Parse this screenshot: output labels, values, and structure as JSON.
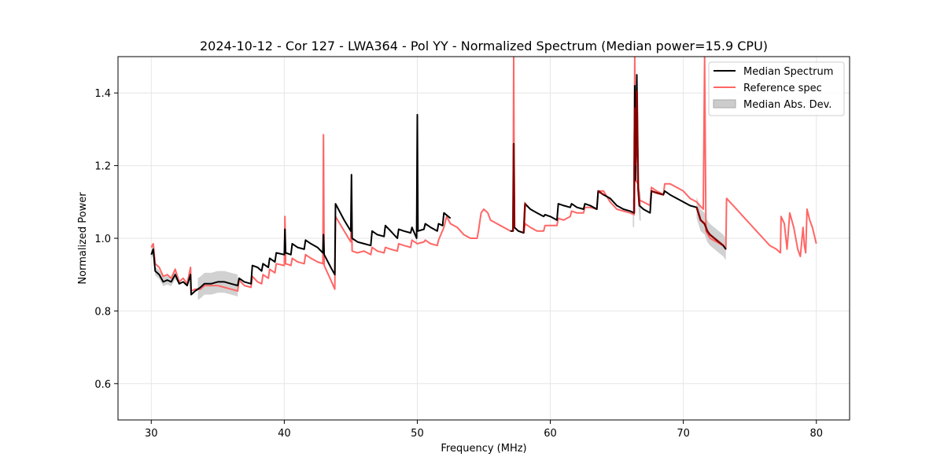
{
  "chart_data": {
    "type": "line",
    "title": "2024-10-12 - Cor 127 - LWA364 - Pol YY - Normalized Spectrum (Median power=15.9 CPU)",
    "xlabel": "Frequency (MHz)",
    "ylabel": "Normalized Power",
    "xlim": [
      27.5,
      82.5
    ],
    "ylim": [
      0.5,
      1.5
    ],
    "xticks": [
      30,
      40,
      50,
      60,
      70,
      80
    ],
    "xtick_labels": [
      "30",
      "40",
      "50",
      "60",
      "70",
      "80"
    ],
    "yticks": [
      0.6,
      0.8,
      1.0,
      1.2,
      1.4
    ],
    "ytick_labels": [
      "0.6",
      "0.8",
      "1.0",
      "1.2",
      "1.4"
    ],
    "grid": true,
    "legend_position": "top-right",
    "series": [
      {
        "name": "Reference spec",
        "color": "#ff6666",
        "points": [
          [
            30.0,
            0.975
          ],
          [
            30.15,
            0.985
          ],
          [
            30.3,
            0.93
          ],
          [
            30.6,
            0.92
          ],
          [
            30.9,
            0.895
          ],
          [
            31.2,
            0.9
          ],
          [
            31.5,
            0.89
          ],
          [
            31.8,
            0.915
          ],
          [
            32.1,
            0.88
          ],
          [
            32.4,
            0.89
          ],
          [
            32.7,
            0.875
          ],
          [
            32.95,
            0.92
          ],
          [
            33.0,
            0.855
          ],
          [
            33.3,
            0.86
          ],
          [
            33.7,
            0.86
          ],
          [
            34.0,
            0.87
          ],
          [
            34.5,
            0.87
          ],
          [
            35.0,
            0.87
          ],
          [
            35.5,
            0.865
          ],
          [
            36.0,
            0.86
          ],
          [
            36.5,
            0.855
          ],
          [
            36.6,
            0.885
          ],
          [
            37.0,
            0.87
          ],
          [
            37.5,
            0.865
          ],
          [
            37.6,
            0.895
          ],
          [
            38.0,
            0.88
          ],
          [
            38.3,
            0.875
          ],
          [
            38.4,
            0.9
          ],
          [
            38.8,
            0.89
          ],
          [
            38.9,
            0.915
          ],
          [
            39.3,
            0.905
          ],
          [
            39.4,
            0.93
          ],
          [
            40.0,
            0.925
          ],
          [
            40.05,
            1.06
          ],
          [
            40.1,
            0.93
          ],
          [
            40.5,
            0.925
          ],
          [
            40.6,
            0.945
          ],
          [
            41.0,
            0.935
          ],
          [
            41.5,
            0.93
          ],
          [
            41.6,
            0.955
          ],
          [
            42.0,
            0.945
          ],
          [
            42.5,
            0.935
          ],
          [
            42.9,
            0.93
          ],
          [
            42.95,
            1.285
          ],
          [
            43.0,
            0.925
          ],
          [
            43.5,
            0.885
          ],
          [
            43.8,
            0.86
          ],
          [
            43.85,
            1.06
          ],
          [
            44.5,
            1.02
          ],
          [
            45.0,
            0.99
          ],
          [
            45.05,
            1.09
          ],
          [
            45.1,
            0.965
          ],
          [
            45.5,
            0.96
          ],
          [
            46.0,
            0.965
          ],
          [
            46.5,
            0.955
          ],
          [
            46.6,
            0.975
          ],
          [
            47.0,
            0.965
          ],
          [
            47.5,
            0.96
          ],
          [
            47.6,
            0.975
          ],
          [
            48.0,
            0.97
          ],
          [
            48.5,
            0.965
          ],
          [
            48.6,
            0.985
          ],
          [
            49.0,
            0.98
          ],
          [
            49.5,
            0.975
          ],
          [
            49.6,
            0.995
          ],
          [
            50.0,
            0.985
          ],
          [
            50.5,
            0.99
          ],
          [
            50.6,
            0.995
          ],
          [
            51.0,
            0.985
          ],
          [
            51.5,
            0.98
          ],
          [
            51.6,
            0.995
          ],
          [
            52.0,
            1.03
          ],
          [
            52.2,
            1.06
          ],
          [
            52.5,
            1.04
          ],
          [
            53.0,
            1.03
          ],
          [
            53.5,
            1.01
          ],
          [
            54.0,
            1.0
          ],
          [
            54.5,
            1.0
          ],
          [
            54.6,
            1.02
          ],
          [
            54.8,
            1.07
          ],
          [
            55.0,
            1.08
          ],
          [
            55.3,
            1.07
          ],
          [
            55.5,
            1.05
          ],
          [
            56.0,
            1.04
          ],
          [
            56.5,
            1.03
          ],
          [
            57.0,
            1.02
          ],
          [
            57.2,
            1.02
          ],
          [
            57.25,
            1.5
          ],
          [
            57.3,
            1.03
          ],
          [
            57.6,
            1.02
          ],
          [
            58.0,
            1.015
          ],
          [
            58.1,
            1.04
          ],
          [
            58.5,
            1.03
          ],
          [
            59.0,
            1.02
          ],
          [
            59.5,
            1.02
          ],
          [
            59.6,
            1.035
          ],
          [
            60.0,
            1.035
          ],
          [
            60.5,
            1.035
          ],
          [
            60.6,
            1.055
          ],
          [
            61.0,
            1.05
          ],
          [
            61.5,
            1.06
          ],
          [
            61.6,
            1.075
          ],
          [
            62.0,
            1.07
          ],
          [
            62.5,
            1.07
          ],
          [
            62.6,
            1.085
          ],
          [
            63.0,
            1.085
          ],
          [
            63.5,
            1.08
          ],
          [
            63.6,
            1.13
          ],
          [
            64.0,
            1.13
          ],
          [
            64.5,
            1.1
          ],
          [
            65.0,
            1.08
          ],
          [
            65.5,
            1.075
          ],
          [
            66.0,
            1.07
          ],
          [
            66.3,
            1.065
          ],
          [
            66.35,
            1.5
          ],
          [
            66.4,
            1.16
          ],
          [
            66.6,
            1.15
          ],
          [
            66.7,
            1.105
          ],
          [
            67.0,
            1.1
          ],
          [
            67.5,
            1.09
          ],
          [
            67.6,
            1.14
          ],
          [
            68.0,
            1.13
          ],
          [
            68.5,
            1.12
          ],
          [
            68.6,
            1.15
          ],
          [
            69.0,
            1.15
          ],
          [
            69.5,
            1.14
          ],
          [
            70.0,
            1.13
          ],
          [
            70.5,
            1.11
          ],
          [
            71.0,
            1.1
          ],
          [
            71.5,
            1.08
          ],
          [
            71.6,
            1.5
          ],
          [
            71.7,
            1.02
          ],
          [
            72.0,
            1.0
          ],
          [
            72.5,
            0.99
          ],
          [
            73.0,
            0.98
          ],
          [
            73.2,
            0.97
          ],
          [
            73.25,
            1.11
          ],
          [
            73.5,
            1.1
          ],
          [
            74.0,
            1.08
          ],
          [
            74.5,
            1.06
          ],
          [
            75.0,
            1.04
          ],
          [
            75.5,
            1.02
          ],
          [
            76.0,
            1.0
          ],
          [
            76.5,
            0.98
          ],
          [
            77.0,
            0.97
          ],
          [
            77.3,
            0.96
          ],
          [
            77.35,
            1.06
          ],
          [
            77.6,
            1.04
          ],
          [
            77.8,
            0.97
          ],
          [
            78.0,
            1.07
          ],
          [
            78.3,
            1.03
          ],
          [
            78.6,
            0.97
          ],
          [
            78.8,
            0.95
          ],
          [
            79.0,
            1.03
          ],
          [
            79.1,
            0.98
          ],
          [
            79.2,
            0.96
          ],
          [
            79.3,
            1.08
          ],
          [
            79.5,
            1.05
          ],
          [
            79.7,
            1.03
          ],
          [
            80.0,
            0.985
          ]
        ]
      },
      {
        "name": "Median Spectrum",
        "color": "#000000",
        "points": [
          [
            30.0,
            0.955
          ],
          [
            30.15,
            0.97
          ],
          [
            30.3,
            0.91
          ],
          [
            30.6,
            0.9
          ],
          [
            30.9,
            0.88
          ],
          [
            31.2,
            0.885
          ],
          [
            31.5,
            0.88
          ],
          [
            31.8,
            0.9
          ],
          [
            32.1,
            0.875
          ],
          [
            32.4,
            0.88
          ],
          [
            32.7,
            0.87
          ],
          [
            32.95,
            0.9
          ],
          [
            33.0,
            0.845
          ],
          [
            33.3,
            0.855
          ],
          [
            33.7,
            0.865
          ],
          [
            34.0,
            0.875
          ],
          [
            34.5,
            0.875
          ],
          [
            35.0,
            0.88
          ],
          [
            35.5,
            0.88
          ],
          [
            36.0,
            0.875
          ],
          [
            36.5,
            0.87
          ],
          [
            36.6,
            0.89
          ],
          [
            37.0,
            0.88
          ],
          [
            37.5,
            0.875
          ],
          [
            37.6,
            0.925
          ],
          [
            38.0,
            0.92
          ],
          [
            38.3,
            0.91
          ],
          [
            38.4,
            0.93
          ],
          [
            38.8,
            0.92
          ],
          [
            38.9,
            0.945
          ],
          [
            39.3,
            0.935
          ],
          [
            39.4,
            0.96
          ],
          [
            40.0,
            0.955
          ],
          [
            40.05,
            1.025
          ],
          [
            40.1,
            0.96
          ],
          [
            40.5,
            0.955
          ],
          [
            40.6,
            0.985
          ],
          [
            41.0,
            0.975
          ],
          [
            41.5,
            0.97
          ],
          [
            41.6,
            0.995
          ],
          [
            42.0,
            0.985
          ],
          [
            42.5,
            0.975
          ],
          [
            42.9,
            0.96
          ],
          [
            42.95,
            1.01
          ],
          [
            43.0,
            0.955
          ],
          [
            43.5,
            0.92
          ],
          [
            43.8,
            0.9
          ],
          [
            43.85,
            1.095
          ],
          [
            44.5,
            1.05
          ],
          [
            45.0,
            1.02
          ],
          [
            45.05,
            1.175
          ],
          [
            45.1,
            1.0
          ],
          [
            45.5,
            0.99
          ],
          [
            46.0,
            0.985
          ],
          [
            46.5,
            0.98
          ],
          [
            46.6,
            1.02
          ],
          [
            47.0,
            1.01
          ],
          [
            47.5,
            1.005
          ],
          [
            47.6,
            1.035
          ],
          [
            48.0,
            1.02
          ],
          [
            48.5,
            1.0
          ],
          [
            48.6,
            1.025
          ],
          [
            49.0,
            1.02
          ],
          [
            49.5,
            1.015
          ],
          [
            49.6,
            1.03
          ],
          [
            49.95,
            1.0
          ],
          [
            50.0,
            1.34
          ],
          [
            50.05,
            1.02
          ],
          [
            50.5,
            1.025
          ],
          [
            50.6,
            1.04
          ],
          [
            51.0,
            1.03
          ],
          [
            51.5,
            1.02
          ],
          [
            51.6,
            1.04
          ],
          [
            51.9,
            1.035
          ],
          [
            52.0,
            1.07
          ],
          [
            52.5,
            1.055
          ],
          null,
          [
            57.0,
            1.02
          ],
          [
            57.2,
            1.02
          ],
          [
            57.25,
            1.26
          ],
          [
            57.3,
            1.03
          ],
          [
            57.6,
            1.02
          ],
          [
            58.0,
            1.015
          ],
          [
            58.1,
            1.095
          ],
          [
            58.5,
            1.08
          ],
          [
            59.0,
            1.07
          ],
          [
            59.5,
            1.06
          ],
          [
            59.6,
            1.065
          ],
          [
            60.0,
            1.06
          ],
          [
            60.5,
            1.05
          ],
          [
            60.6,
            1.095
          ],
          [
            61.0,
            1.09
          ],
          [
            61.5,
            1.085
          ],
          [
            61.6,
            1.095
          ],
          [
            62.0,
            1.085
          ],
          [
            62.5,
            1.08
          ],
          [
            62.6,
            1.095
          ],
          [
            63.0,
            1.09
          ],
          [
            63.5,
            1.08
          ],
          [
            63.6,
            1.13
          ],
          [
            64.0,
            1.12
          ],
          [
            64.5,
            1.11
          ],
          [
            65.0,
            1.09
          ],
          [
            65.5,
            1.08
          ],
          [
            66.0,
            1.075
          ],
          [
            66.3,
            1.07
          ],
          [
            66.35,
            1.42
          ],
          [
            66.4,
            1.16
          ],
          [
            66.5,
            1.45
          ],
          [
            66.6,
            1.14
          ],
          [
            66.7,
            1.09
          ],
          [
            67.0,
            1.08
          ],
          [
            67.5,
            1.07
          ],
          [
            67.6,
            1.13
          ],
          [
            68.0,
            1.125
          ],
          [
            68.5,
            1.12
          ],
          [
            68.6,
            1.13
          ],
          [
            69.0,
            1.12
          ],
          [
            69.5,
            1.11
          ],
          [
            70.0,
            1.1
          ],
          [
            70.5,
            1.09
          ],
          [
            71.0,
            1.085
          ],
          [
            71.3,
            1.05
          ],
          [
            71.6,
            1.04
          ],
          [
            71.8,
            1.02
          ],
          [
            72.0,
            1.01
          ],
          [
            72.5,
            0.995
          ],
          [
            73.0,
            0.98
          ],
          [
            73.2,
            0.97
          ]
        ]
      }
    ],
    "mad_band": {
      "name": "Median Abs. Dev.",
      "color": "#cccccc",
      "ranges": [
        [
          30.0,
          31.9,
          0.012
        ],
        [
          33.5,
          36.5,
          0.03
        ],
        [
          45.0,
          45.1,
          0.02
        ],
        [
          49.9,
          50.1,
          0.02
        ],
        [
          66.2,
          66.8,
          0.04
        ],
        [
          71.0,
          73.2,
          0.03
        ]
      ]
    },
    "overlay": {
      "color": "#990000",
      "ranges": [
        [
          57.2,
          57.3
        ],
        [
          58.0,
          58.2
        ],
        [
          63.6,
          64.0
        ],
        [
          66.3,
          66.7
        ],
        [
          67.6,
          68.5
        ],
        [
          71.0,
          73.0
        ]
      ]
    }
  }
}
